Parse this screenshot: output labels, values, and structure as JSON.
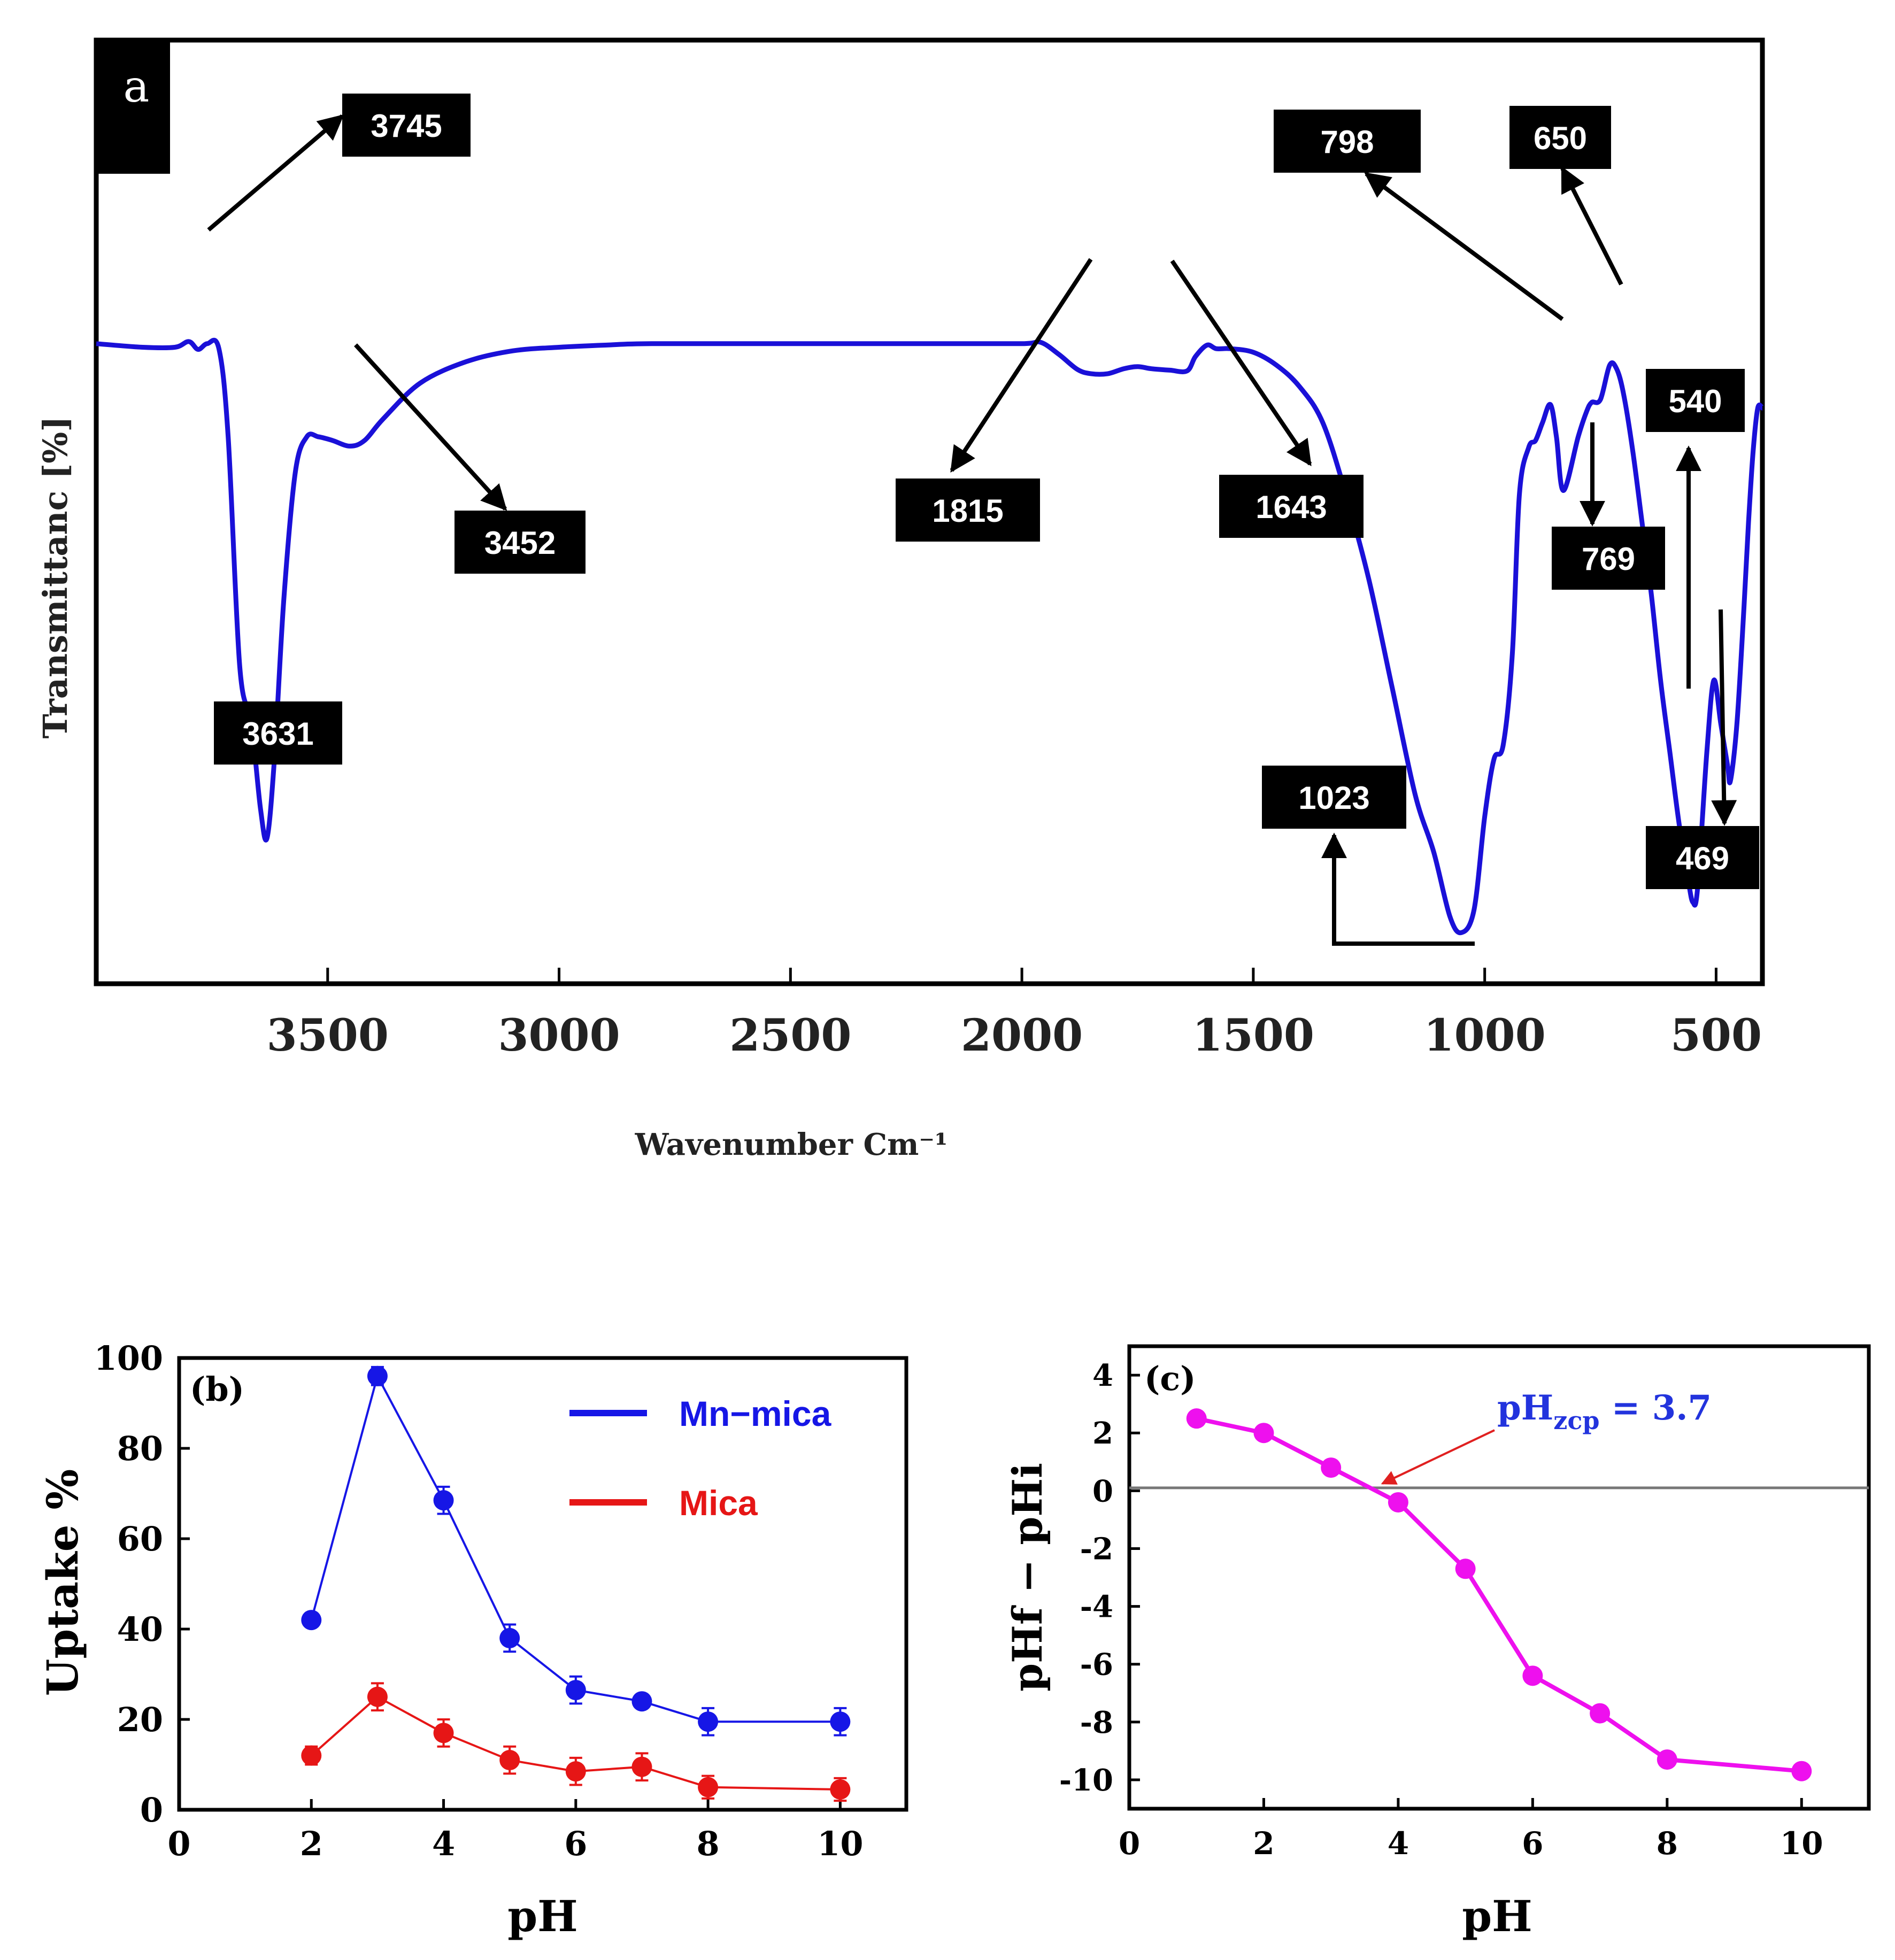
{
  "chart_data": [
    {
      "id": "a",
      "type": "line",
      "panel_label": "a",
      "ylabel": "Transmittanc   [%]",
      "xlabel": "Wavenumber  Cm⁻¹",
      "xlim": [
        4000,
        400
      ],
      "ylim": [
        0,
        100
      ],
      "xticks": [
        3500,
        3000,
        2500,
        2000,
        1500,
        1000,
        500
      ],
      "color": "#1a10d8",
      "points": [
        [
          4000,
          83
        ],
        [
          3900,
          82.5
        ],
        [
          3830,
          82.5
        ],
        [
          3800,
          83.3
        ],
        [
          3780,
          82.2
        ],
        [
          3760,
          83
        ],
        [
          3735,
          82.3
        ],
        [
          3715,
          70
        ],
        [
          3690,
          38
        ],
        [
          3665,
          30
        ],
        [
          3645,
          18
        ],
        [
          3631,
          14
        ],
        [
          3615,
          25
        ],
        [
          3595,
          47
        ],
        [
          3570,
          65
        ],
        [
          3545,
          70
        ],
        [
          3520,
          70
        ],
        [
          3490,
          69.5
        ],
        [
          3452,
          68.7
        ],
        [
          3420,
          69.5
        ],
        [
          3380,
          72.5
        ],
        [
          3300,
          77.5
        ],
        [
          3200,
          80.5
        ],
        [
          3100,
          82
        ],
        [
          3000,
          82.5
        ],
        [
          2900,
          82.8
        ],
        [
          2800,
          83
        ],
        [
          2500,
          83
        ],
        [
          2200,
          83
        ],
        [
          2000,
          83
        ],
        [
          1960,
          83.2
        ],
        [
          1920,
          81.5
        ],
        [
          1880,
          79.4
        ],
        [
          1850,
          78.8
        ],
        [
          1815,
          78.8
        ],
        [
          1780,
          79.5
        ],
        [
          1750,
          79.8
        ],
        [
          1720,
          79.5
        ],
        [
          1680,
          79.3
        ],
        [
          1643,
          79.2
        ],
        [
          1625,
          81.2
        ],
        [
          1600,
          82.8
        ],
        [
          1580,
          82.3
        ],
        [
          1550,
          82.3
        ],
        [
          1500,
          81.8
        ],
        [
          1450,
          80
        ],
        [
          1400,
          77
        ],
        [
          1350,
          72
        ],
        [
          1300,
          62
        ],
        [
          1250,
          50
        ],
        [
          1200,
          35
        ],
        [
          1150,
          20
        ],
        [
          1110,
          12
        ],
        [
          1075,
          3
        ],
        [
          1050,
          0.8
        ],
        [
          1023,
          4
        ],
        [
          1000,
          17
        ],
        [
          980,
          25
        ],
        [
          960,
          27
        ],
        [
          940,
          40
        ],
        [
          925,
          62
        ],
        [
          905,
          68.5
        ],
        [
          890,
          69.5
        ],
        [
          875,
          72
        ],
        [
          858,
          74.5
        ],
        [
          845,
          70
        ],
        [
          830,
          62.5
        ],
        [
          798,
          70
        ],
        [
          780,
          73.5
        ],
        [
          769,
          74.8
        ],
        [
          750,
          75.2
        ],
        [
          730,
          80
        ],
        [
          715,
          79.5
        ],
        [
          700,
          76
        ],
        [
          680,
          68
        ],
        [
          660,
          58
        ],
        [
          640,
          48
        ],
        [
          620,
          36
        ],
        [
          600,
          26
        ],
        [
          580,
          16
        ],
        [
          560,
          8
        ],
        [
          550,
          5
        ],
        [
          540,
          7
        ],
        [
          520,
          26
        ],
        [
          505,
          36
        ],
        [
          490,
          30
        ],
        [
          475,
          24
        ],
        [
          469,
          22
        ],
        [
          455,
          30
        ],
        [
          440,
          46
        ],
        [
          430,
          58
        ],
        [
          420,
          68
        ],
        [
          410,
          74
        ],
        [
          400,
          74
        ]
      ],
      "annotations": [
        {
          "label": "3745",
          "target": [
            3760,
            83
          ]
        },
        {
          "label": "3452",
          "target": [
            3452,
            68.7
          ]
        },
        {
          "label": "3631",
          "target": [
            3631,
            14
          ]
        },
        {
          "label": "1815",
          "target": [
            1815,
            78.8
          ]
        },
        {
          "label": "1643",
          "target": [
            1643,
            79.2
          ]
        },
        {
          "label": "1023",
          "target": [
            1023,
            0.8
          ]
        },
        {
          "label": "798",
          "target": [
            798,
            70
          ]
        },
        {
          "label": "650",
          "target": [
            650,
            74.5
          ]
        },
        {
          "label": "769",
          "target": [
            769,
            74.8
          ]
        },
        {
          "label": "540",
          "target": [
            540,
            5
          ]
        },
        {
          "label": "469",
          "target": [
            469,
            22
          ]
        }
      ]
    },
    {
      "id": "b",
      "type": "line",
      "panel_label": "(b)",
      "xlabel": "pH",
      "ylabel": "Uptake %",
      "xlim": [
        0,
        11
      ],
      "ylim": [
        0,
        100
      ],
      "xticks": [
        0,
        2,
        4,
        6,
        8,
        10
      ],
      "yticks": [
        0,
        20,
        40,
        60,
        80,
        100
      ],
      "legend_position": "top-right",
      "series": [
        {
          "name": "Mn−mica",
          "color": "#1616e6",
          "x": [
            2,
            3,
            4,
            5,
            6,
            7,
            8,
            10
          ],
          "values": [
            42,
            96,
            68.5,
            38,
            26.5,
            24,
            19.5,
            19.5
          ],
          "errors": [
            0,
            2,
            3,
            3,
            3,
            1.5,
            3,
            3
          ]
        },
        {
          "name": "Mica",
          "color": "#e61616",
          "x": [
            2,
            3,
            4,
            5,
            6,
            7,
            8,
            10
          ],
          "values": [
            12,
            25,
            17,
            11,
            8.5,
            9.5,
            5,
            4.5
          ],
          "errors": [
            2,
            3,
            3,
            3,
            3,
            3,
            2.5,
            2.5
          ]
        }
      ]
    },
    {
      "id": "c",
      "type": "line",
      "panel_label": "(c)",
      "xlabel": "pH",
      "ylabel": "pHf − pHi",
      "xlim": [
        0,
        11
      ],
      "ylim": [
        -11,
        5
      ],
      "xticks": [
        0,
        2,
        4,
        6,
        8,
        10
      ],
      "yticks": [
        4,
        2,
        0,
        -2,
        -4,
        -6,
        -8,
        -10
      ],
      "reference_line": 0.1,
      "annotation": "pHzcp = 3.7",
      "annotation_main": "pH",
      "annotation_sub": "zcp",
      "annotation_rest": " = 3.7",
      "annotation_value": 3.7,
      "series": [
        {
          "name": "pHf - pHi",
          "color": "#ee10ee",
          "x": [
            1,
            2,
            3,
            4,
            5,
            6,
            7,
            8,
            10
          ],
          "values": [
            2.5,
            2,
            0.8,
            -0.4,
            -2.7,
            -6.4,
            -7.7,
            -9.3,
            -9.7
          ]
        }
      ]
    }
  ]
}
